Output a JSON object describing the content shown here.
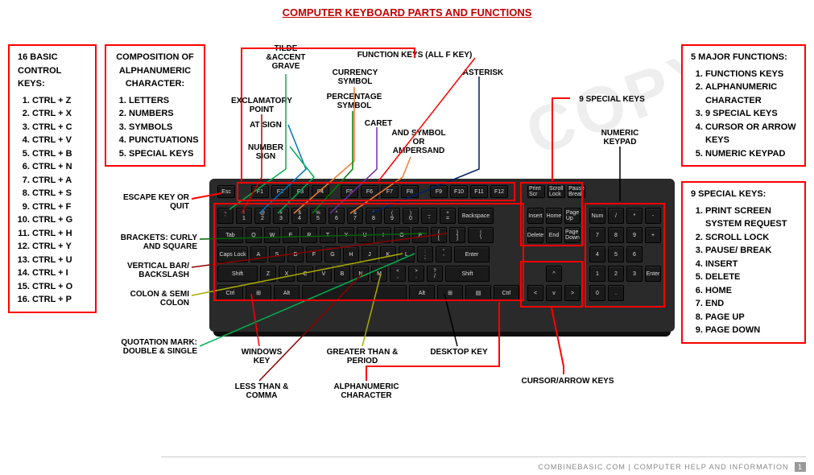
{
  "title": "COMPUTER KEYBOARD PARTS AND FUNCTIONS",
  "watermark": "COPY",
  "boxes": {
    "control_keys": {
      "title": "16 BASIC CONTROL KEYS:",
      "items": [
        "CTRL + Z",
        "CTRL + X",
        "CTRL + C",
        "CTRL + V",
        "CTRL + B",
        "CTRL + N",
        "CTRL + A",
        "CTRL + S",
        "CTRL + F",
        "CTRL + G",
        "CTRL + H",
        "CTRL + Y",
        "CTRL + U",
        "CTRL + I",
        "CTRL + O",
        "CTRL + P"
      ]
    },
    "composition": {
      "title": "COMPOSITION OF ALPHANUMERIC CHARACTER:",
      "items": [
        "LETTERS",
        "NUMBERS",
        "SYMBOLS",
        "PUNCTUATIONS",
        "SPECIAL KEYS"
      ]
    },
    "major_functions": {
      "title": "5 MAJOR FUNCTIONS:",
      "items": [
        "FUNCTIONS KEYS",
        "ALPHANUMERIC CHARACTER",
        "9 SPECIAL KEYS",
        "CURSOR OR ARROW KEYS",
        "NUMERIC KEYPAD"
      ]
    },
    "special_keys": {
      "title": "9 SPECIAL KEYS:",
      "items": [
        "PRINT SCREEN SYSTEM REQUEST",
        "SCROLL LOCK",
        "PAUSE/ BREAK",
        "INSERT",
        "DELETE",
        "HOME",
        "END",
        "PAGE UP",
        "PAGE DOWN"
      ]
    }
  },
  "labels": {
    "tilde": "TILDE &ACCENT GRAVE",
    "function_keys": "FUNCTION KEYS (ALL F KEY)",
    "currency": "CURRENCY SYMBOL",
    "asterisk": "ASTERISK",
    "exclamatory": "EXCLAMATORY POINT",
    "percentage": "PERCENTAGE SYMBOL",
    "at_sign": "AT SIGN",
    "caret": "CARET",
    "number_sign": "NUMBER SIGN",
    "ampersand": "AND SYMBOL OR AMPERSAND",
    "nine_special": "9 SPECIAL KEYS",
    "numeric_keypad": "NUMERIC KEYPAD",
    "escape": "ESCAPE KEY OR QUIT",
    "brackets": "BRACKETS: CURLY AND SQUARE",
    "vertical_bar": "VERTICAL BAR/ BACKSLASH",
    "colon": "COLON & SEMI COLON",
    "quotation": "QUOTATION MARK: DOUBLE & SINGLE",
    "windows": "WINDOWS KEY",
    "less_than": "LESS THAN & COMMA",
    "greater_than": "GREATER THAN & PERIOD",
    "alphanumeric": "ALPHANUMERIC CHARACTER",
    "desktop": "DESKTOP KEY",
    "cursor": "CURSOR/ARROW KEYS"
  },
  "colors": {
    "red": "#ff0000",
    "green": "#00b050",
    "blue": "#0070c0",
    "darkblue": "#002060",
    "orange": "#ed7d31",
    "purple": "#7030a0",
    "magenta": "#c00000",
    "darkred": "#8b0000",
    "darkgreen": "#006400",
    "yellow": "#cccc00",
    "black": "#000"
  },
  "footer": {
    "site": "COMBINEBASIC.COM",
    "sep": "|",
    "text": "COMPUTER HELP AND INFORMATION",
    "page": "1"
  },
  "keyboard": {
    "frow": [
      "Esc",
      "F1",
      "F2",
      "F3",
      "F4",
      "F5",
      "F6",
      "F7",
      "F8",
      "F9",
      "F10",
      "F11",
      "F12"
    ],
    "nav1": [
      "Print Scr",
      "Scroll Lock",
      "Pause Break"
    ],
    "row1_top": [
      "~",
      "!",
      "@",
      "#",
      "$",
      "%",
      "^",
      "&",
      "*",
      "(",
      ")",
      "_",
      "+"
    ],
    "row1_bot": [
      "`",
      "1",
      "2",
      "3",
      "4",
      "5",
      "6",
      "7",
      "8",
      "9",
      "0",
      "-",
      "="
    ],
    "row2": [
      "Q",
      "W",
      "E",
      "R",
      "T",
      "Y",
      "U",
      "I",
      "O",
      "P",
      "[",
      "]"
    ],
    "row2_top": [
      "",
      "",
      "",
      "",
      "",
      "",
      "",
      "",
      "",
      "",
      "{",
      "}"
    ],
    "row3": [
      "A",
      "S",
      "D",
      "F",
      "G",
      "H",
      "J",
      "K",
      "L",
      ";",
      "'"
    ],
    "row3_top": [
      "",
      "",
      "",
      "",
      "",
      "",
      "",
      "",
      "",
      ":",
      "\""
    ],
    "row4": [
      "Z",
      "X",
      "C",
      "V",
      "B",
      "N",
      "M",
      ",",
      ".",
      "/"
    ],
    "row4_top": [
      "",
      "",
      "",
      "",
      "",
      "",
      "",
      "<",
      ">",
      "?"
    ],
    "nav2": [
      "Insert",
      "Home",
      "Page Up"
    ],
    "nav3": [
      "Delete",
      "End",
      "Page Down"
    ],
    "num": [
      [
        "Num",
        "/",
        "*",
        "-"
      ],
      [
        "7",
        "8",
        "9",
        "+"
      ],
      [
        "4",
        "5",
        "6",
        ""
      ],
      [
        "1",
        "2",
        "3",
        "Enter"
      ],
      [
        "0",
        ".",
        ""
      ]
    ]
  }
}
